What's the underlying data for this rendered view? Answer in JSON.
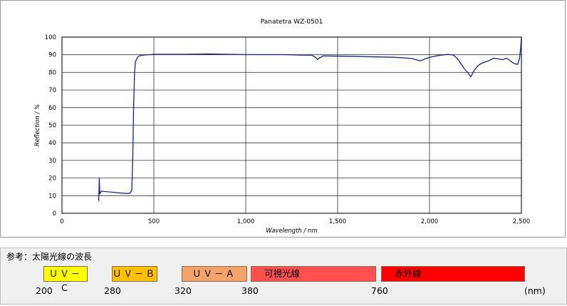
{
  "chart_data": {
    "type": "line",
    "title": "Panatetra WZ-0501",
    "xlabel": "Wavelength / nm",
    "ylabel": "Reflection / %",
    "xlim": [
      0,
      2500
    ],
    "ylim": [
      0,
      100
    ],
    "x_ticks": [
      0,
      500,
      1000,
      1500,
      2000,
      2500
    ],
    "x_tick_labels": [
      "0",
      "500",
      "1,000",
      "1,500",
      "2,000",
      "2,500"
    ],
    "y_ticks": [
      0,
      10,
      20,
      30,
      40,
      50,
      60,
      70,
      80,
      90,
      100
    ],
    "y_tick_labels": [
      "0",
      "10",
      "20",
      "30",
      "40",
      "50",
      "60",
      "70",
      "80",
      "90",
      "100"
    ],
    "grid": true,
    "series_color": "#1a237e",
    "series": [
      {
        "name": "",
        "points": [
          [
            200,
            7
          ],
          [
            203,
            20
          ],
          [
            206,
            11
          ],
          [
            215,
            12.6
          ],
          [
            240,
            12.3
          ],
          [
            270,
            12.0
          ],
          [
            300,
            11.7
          ],
          [
            330,
            11.4
          ],
          [
            355,
            11.2
          ],
          [
            370,
            11.4
          ],
          [
            380,
            13
          ],
          [
            385,
            30
          ],
          [
            390,
            60
          ],
          [
            395,
            80
          ],
          [
            400,
            86
          ],
          [
            410,
            88.5
          ],
          [
            420,
            89.3
          ],
          [
            440,
            89.7
          ],
          [
            460,
            89.9
          ],
          [
            500,
            90.2
          ],
          [
            600,
            90.2
          ],
          [
            700,
            90.3
          ],
          [
            800,
            90.4
          ],
          [
            900,
            90.2
          ],
          [
            1000,
            90.1
          ],
          [
            1100,
            90.1
          ],
          [
            1200,
            90.1
          ],
          [
            1300,
            89.8
          ],
          [
            1360,
            89.7
          ],
          [
            1380,
            88.5
          ],
          [
            1390,
            87.3
          ],
          [
            1400,
            88.0
          ],
          [
            1420,
            89.3
          ],
          [
            1500,
            89.2
          ],
          [
            1600,
            89.0
          ],
          [
            1700,
            88.8
          ],
          [
            1800,
            88.6
          ],
          [
            1900,
            87.9
          ],
          [
            1950,
            86.5
          ],
          [
            1980,
            87.8
          ],
          [
            2000,
            88.5
          ],
          [
            2050,
            89.6
          ],
          [
            2100,
            90.2
          ],
          [
            2130,
            89.8
          ],
          [
            2150,
            88.0
          ],
          [
            2170,
            85.0
          ],
          [
            2190,
            82.0
          ],
          [
            2210,
            79.5
          ],
          [
            2225,
            77.5
          ],
          [
            2240,
            80.5
          ],
          [
            2260,
            83.5
          ],
          [
            2280,
            85.0
          ],
          [
            2300,
            85.8
          ],
          [
            2320,
            86.5
          ],
          [
            2350,
            88.0
          ],
          [
            2380,
            87.5
          ],
          [
            2400,
            87.2
          ],
          [
            2420,
            88.0
          ],
          [
            2440,
            86.5
          ],
          [
            2460,
            85.0
          ],
          [
            2480,
            84.5
          ],
          [
            2490,
            88.0
          ],
          [
            2496,
            94.0
          ],
          [
            2500,
            100.0
          ]
        ]
      }
    ]
  },
  "reference": {
    "title": "参考：太陽光線の波長",
    "bands": [
      {
        "label": "ＵＶ－Ｃ",
        "color": "#ffff00",
        "from": 200,
        "to": 280
      },
      {
        "label": "ＵＶ－Ｂ",
        "color": "#ffc000",
        "from": 280,
        "to": 320
      },
      {
        "label": "ＵＶ－Ａ",
        "color": "#f4a36a",
        "from": 320,
        "to": 380
      },
      {
        "label": "可視光線",
        "color": "#ff5050",
        "from": 380,
        "to": 760
      },
      {
        "label": "赤外線",
        "color": "#ff0000",
        "from": 760,
        "to": null
      }
    ],
    "tick_labels": [
      "200",
      "280",
      "320",
      "380",
      "760",
      "(nm)"
    ]
  }
}
